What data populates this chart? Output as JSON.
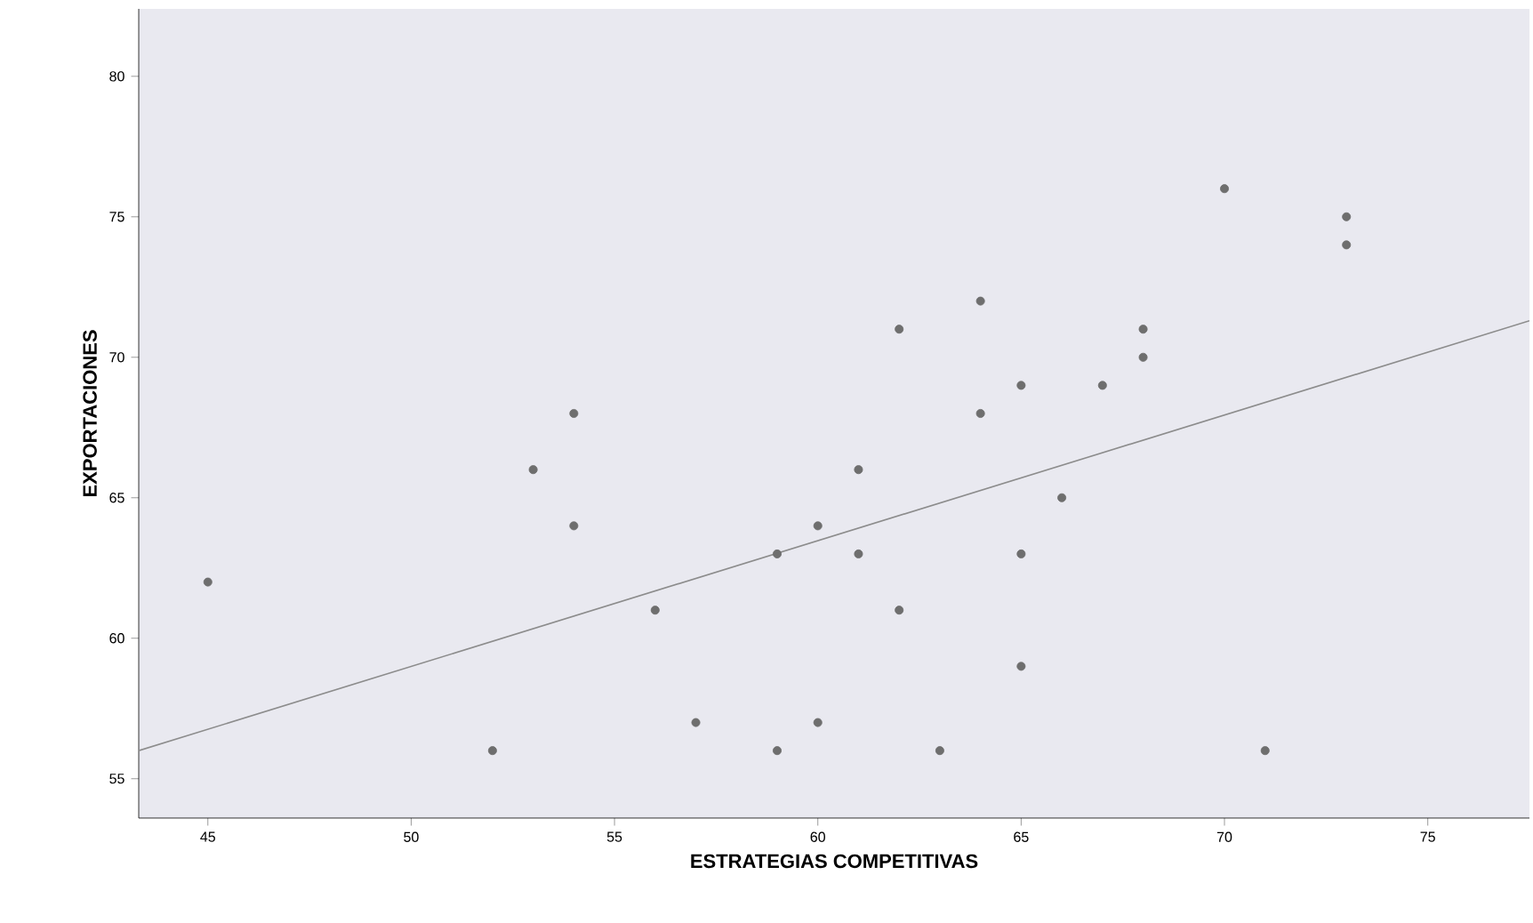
{
  "chart_data": {
    "type": "scatter",
    "xlabel": "ESTRATEGIAS COMPETITIVAS",
    "ylabel": "EXPORTACIONES",
    "xlim": [
      43.3,
      77.5
    ],
    "ylim": [
      53.6,
      82.4
    ],
    "xticks": [
      45,
      50,
      55,
      60,
      65,
      70,
      75
    ],
    "yticks": [
      55,
      60,
      65,
      70,
      75,
      80
    ],
    "grid": false,
    "marker": "circle",
    "series": [
      {
        "color": "#6e6e6e",
        "x": [
          45,
          52,
          53,
          54,
          54,
          56,
          57,
          59,
          59,
          60,
          60,
          61,
          61,
          62,
          62,
          63,
          64,
          64,
          65,
          65,
          65,
          66,
          67,
          68,
          68,
          70,
          71,
          73,
          73
        ],
        "values": [
          62,
          56,
          66,
          68,
          64,
          61,
          57,
          63,
          56,
          64,
          57,
          66,
          63,
          71,
          61,
          56,
          72,
          68,
          69,
          63,
          59,
          65,
          69,
          71,
          70,
          76,
          56,
          75,
          74
        ]
      },
      {
        "type": "line",
        "marker": "none",
        "color": "#8c8c8c",
        "x": [
          43.3,
          77.5
        ],
        "values": [
          56.0,
          71.3
        ]
      }
    ]
  }
}
